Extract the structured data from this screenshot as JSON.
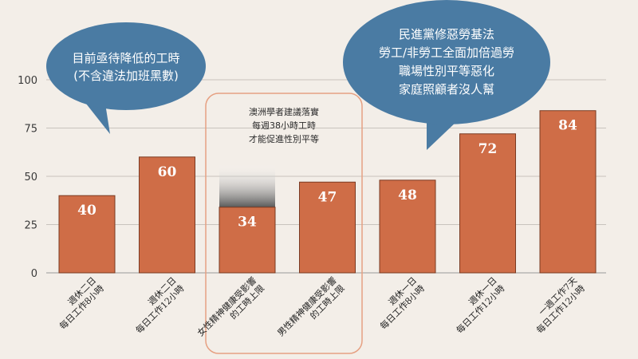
{
  "chart_data": {
    "type": "bar",
    "categories": [
      [
        "週休二日",
        "每日工作8小時"
      ],
      [
        "週休二日",
        "每日工作12小時"
      ],
      [
        "女性精神健康受影響",
        "的工時上限"
      ],
      [
        "男性精神健康受影響",
        "的工時上限"
      ],
      [
        "週休一日",
        "每日工作8小時"
      ],
      [
        "週休一日",
        "每日工作12小時"
      ],
      [
        "一週工作7天",
        "每日工作12小時"
      ]
    ],
    "values": [
      40,
      60,
      34,
      47,
      48,
      72,
      84
    ],
    "yticks": [
      0,
      25,
      50,
      75,
      100
    ],
    "ylim": [
      0,
      100
    ],
    "grid": true,
    "colors": {
      "bar": "#cf6d47",
      "bar_stroke": "#7a3a22",
      "bubble": "#4a7ba3",
      "highlight_border": "#e6a082"
    },
    "annotations": {
      "left_bubble": [
        "目前亟待降低的工時",
        "(不含違法加班黑數)"
      ],
      "right_bubble": [
        "民進黨修惡勞基法",
        "勞工/非勞工全面加倍過勞",
        "職場性別平等惡化",
        "家庭照顧者沒人幫"
      ],
      "center_note": [
        "澳洲學者建議落實",
        "每週38小時工時",
        "才能促進性別平等"
      ]
    }
  }
}
